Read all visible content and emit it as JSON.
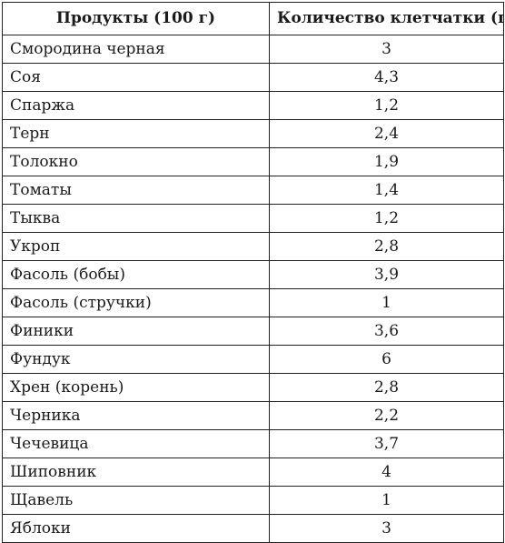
{
  "table": {
    "headers": {
      "product": "Продукты (100 г)",
      "fiber": "Количество клетчатки (г)"
    },
    "rows": [
      {
        "product": "Смородина черная",
        "fiber": "3"
      },
      {
        "product": "Соя",
        "fiber": "4,3"
      },
      {
        "product": "Спаржа",
        "fiber": "1,2"
      },
      {
        "product": "Терн",
        "fiber": "2,4"
      },
      {
        "product": "Толокно",
        "fiber": "1,9"
      },
      {
        "product": "Томаты",
        "fiber": "1,4"
      },
      {
        "product": "Тыква",
        "fiber": "1,2"
      },
      {
        "product": "Укроп",
        "fiber": "2,8"
      },
      {
        "product": "Фасоль (бобы)",
        "fiber": "3,9"
      },
      {
        "product": "Фасоль (стручки)",
        "fiber": "1"
      },
      {
        "product": "Финики",
        "fiber": "3,6"
      },
      {
        "product": "Фундук",
        "fiber": "6"
      },
      {
        "product": "Хрен (корень)",
        "fiber": "2,8"
      },
      {
        "product": "Черника",
        "fiber": "2,2"
      },
      {
        "product": "Чечевица",
        "fiber": "3,7"
      },
      {
        "product": "Шиповник",
        "fiber": "4"
      },
      {
        "product": "Щавель",
        "fiber": "1"
      },
      {
        "product": "Яблоки",
        "fiber": "3"
      }
    ]
  }
}
